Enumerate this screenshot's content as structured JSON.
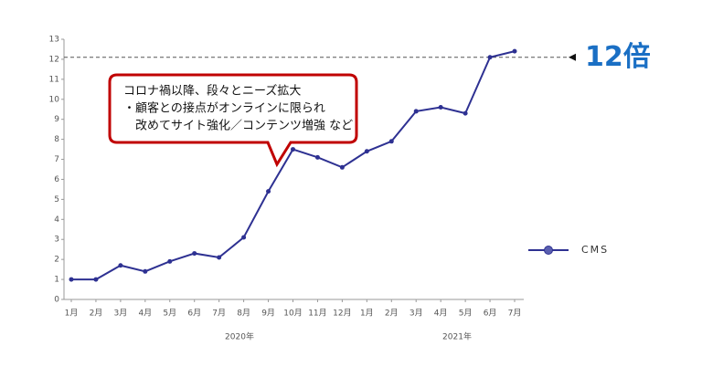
{
  "chart_data": {
    "type": "line",
    "categories": [
      "1月",
      "2月",
      "3月",
      "4月",
      "5月",
      "6月",
      "7月",
      "8月",
      "9月",
      "10月",
      "11月",
      "12月",
      "1月",
      "2月",
      "3月",
      "4月",
      "5月",
      "6月",
      "7月"
    ],
    "year_labels": [
      "2020年",
      "2021年"
    ],
    "series": [
      {
        "name": "CMS",
        "color": "#2e3192",
        "values": [
          1,
          1,
          1.7,
          1.4,
          1.9,
          2.3,
          2.1,
          3.1,
          5.4,
          7.5,
          7.1,
          6.6,
          7.4,
          7.9,
          9.4,
          9.6,
          9.3,
          12.1,
          12.4
        ]
      }
    ],
    "ylim": [
      0,
      13
    ],
    "yticks": [
      0,
      1,
      2,
      3,
      4,
      5,
      6,
      7,
      8,
      9,
      10,
      11,
      12,
      13
    ],
    "reference_line": 12.1,
    "reference_label": "12倍",
    "annotation": [
      "コロナ禍以降、段々とニーズ拡大",
      "・顧客との接点がオンラインに限られ",
      "　改めてサイト強化／コンテンツ増強 など"
    ],
    "legend": "right"
  }
}
